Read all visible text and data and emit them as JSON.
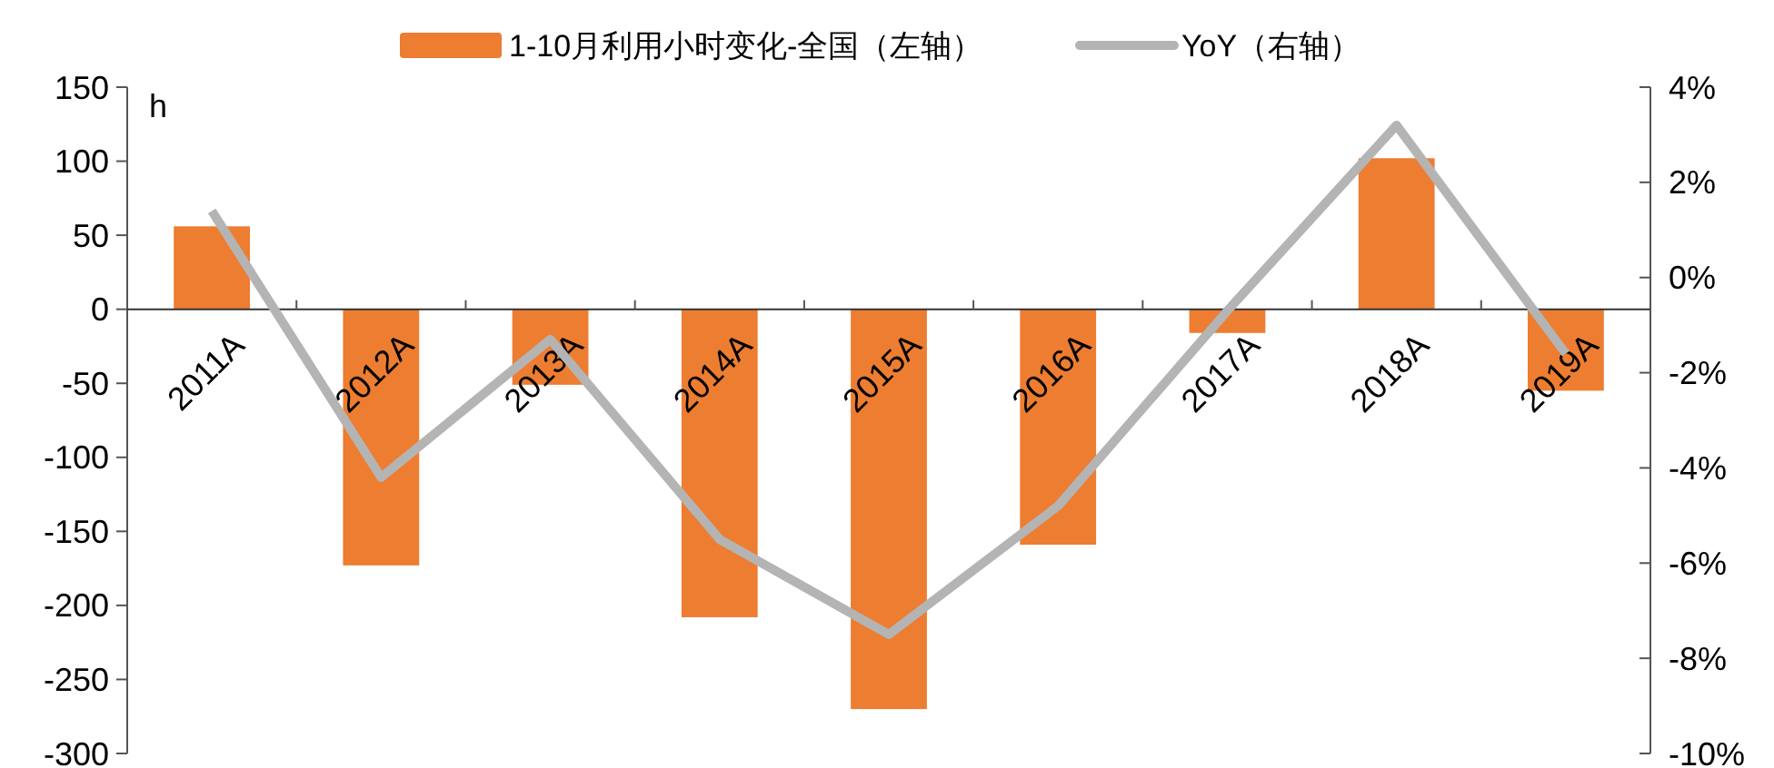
{
  "chart_data": {
    "type": "bar",
    "ylabel": "h",
    "categories": [
      "2011A",
      "2012A",
      "2013A",
      "2014A",
      "2015A",
      "2016A",
      "2017A",
      "2018A",
      "2019A"
    ],
    "series": [
      {
        "name": "1-10月利用小时变化-全国（左轴）",
        "color": "#ed7d31",
        "values": [
          56,
          -173,
          -51,
          -208,
          -270,
          -159,
          -16,
          102,
          -55
        ]
      },
      {
        "name": "YoY（右轴）",
        "type": "line",
        "axis": "y2",
        "color": "#b4b4b4",
        "values": [
          1.4,
          -4.2,
          -1.3,
          -5.5,
          -7.5,
          -4.8,
          -0.7,
          3.2,
          -1.6
        ]
      }
    ],
    "ylim": [
      -300,
      150
    ],
    "yticks": [
      -300,
      -250,
      -200,
      -150,
      -100,
      -50,
      0,
      50,
      100,
      150
    ],
    "y2lim": [
      -10,
      4
    ],
    "y2ticks": [
      {
        "value": -10,
        "label": "-10%"
      },
      {
        "value": -8,
        "label": "-8%"
      },
      {
        "value": -6,
        "label": "-6%"
      },
      {
        "value": -4,
        "label": "-4%"
      },
      {
        "value": -2,
        "label": "-2%"
      },
      {
        "value": 0,
        "label": "0%"
      },
      {
        "value": 2,
        "label": "2%"
      },
      {
        "value": 4,
        "label": "4%"
      }
    ],
    "legend": "top",
    "marker": "none",
    "line_style": "solid"
  }
}
